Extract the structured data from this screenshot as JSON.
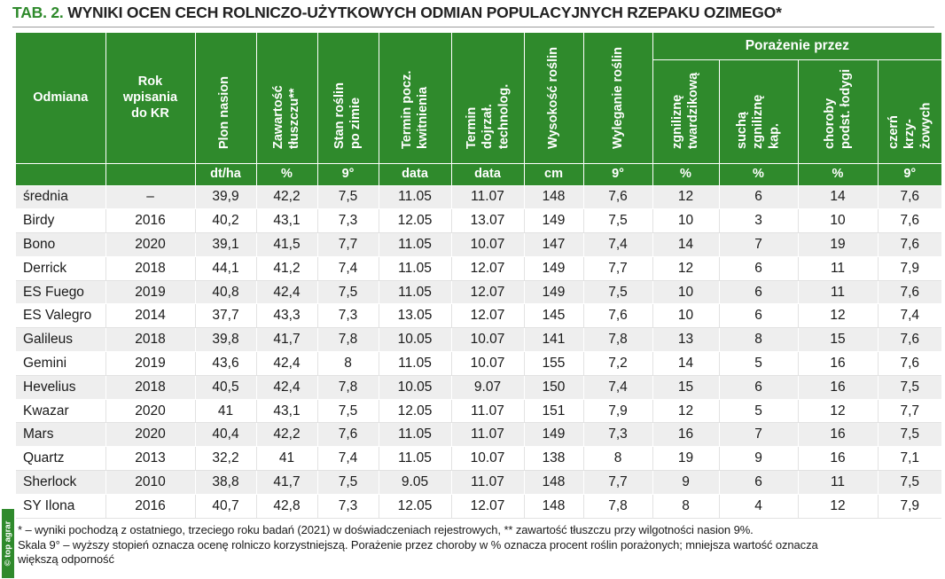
{
  "title": {
    "tab": "TAB. 2.",
    "text": "WYNIKI OCEN CECH ROLNICZO-UŻYTKOWYCH ODMIAN POPULACYJNYCH RZEPAKU OZIMEGO*"
  },
  "side_tag": "© top agrar",
  "header": {
    "odmiana": "Odmiana",
    "rok": "Rok wpisania do KR",
    "group_porazenie": "Porażenie przez",
    "columns": [
      {
        "label": "Plon nasion",
        "unit": "dt/ha"
      },
      {
        "label": "Zawartość tłuszczu**",
        "unit": "%"
      },
      {
        "label": "Stan roślin po zimie",
        "unit": "9°"
      },
      {
        "label": "Termin pocz. kwitnienia",
        "unit": "data"
      },
      {
        "label": "Termin dojrzał. technolog.",
        "unit": "data"
      },
      {
        "label": "Wysokość roślin",
        "unit": "cm"
      },
      {
        "label": "Wyleganie roślin",
        "unit": "9°"
      },
      {
        "label": "zgniliznę twardzikową",
        "unit": "%"
      },
      {
        "label": "suchą zgniliznę kap.",
        "unit": "%"
      },
      {
        "label": "choroby podst. łodygi",
        "unit": "%"
      },
      {
        "label": "czerń krzy-żowych",
        "unit": "9°"
      }
    ]
  },
  "rows": [
    {
      "name": "średnia",
      "rok": "–",
      "vals": [
        "39,9",
        "42,2",
        "7,5",
        "11.05",
        "11.07",
        "148",
        "7,6",
        "12",
        "6",
        "14",
        "7,6"
      ]
    },
    {
      "name": "Birdy",
      "rok": "2016",
      "vals": [
        "40,2",
        "43,1",
        "7,3",
        "12.05",
        "13.07",
        "149",
        "7,5",
        "10",
        "3",
        "10",
        "7,6"
      ]
    },
    {
      "name": "Bono",
      "rok": "2020",
      "vals": [
        "39,1",
        "41,5",
        "7,7",
        "11.05",
        "10.07",
        "147",
        "7,4",
        "14",
        "7",
        "19",
        "7,6"
      ]
    },
    {
      "name": "Derrick",
      "rok": "2018",
      "vals": [
        "44,1",
        "41,2",
        "7,4",
        "11.05",
        "12.07",
        "149",
        "7,7",
        "12",
        "6",
        "11",
        "7,9"
      ]
    },
    {
      "name": "ES Fuego",
      "rok": "2019",
      "vals": [
        "40,8",
        "42,4",
        "7,5",
        "11.05",
        "12.07",
        "149",
        "7,5",
        "10",
        "6",
        "11",
        "7,6"
      ]
    },
    {
      "name": "ES Valegro",
      "rok": "2014",
      "vals": [
        "37,7",
        "43,3",
        "7,3",
        "13.05",
        "12.07",
        "145",
        "7,6",
        "10",
        "6",
        "12",
        "7,4"
      ]
    },
    {
      "name": "Galileus",
      "rok": "2018",
      "vals": [
        "39,8",
        "41,7",
        "7,8",
        "10.05",
        "10.07",
        "141",
        "7,8",
        "13",
        "8",
        "15",
        "7,6"
      ]
    },
    {
      "name": "Gemini",
      "rok": "2019",
      "vals": [
        "43,6",
        "42,4",
        "8",
        "11.05",
        "10.07",
        "155",
        "7,2",
        "14",
        "5",
        "16",
        "7,6"
      ]
    },
    {
      "name": "Hevelius",
      "rok": "2018",
      "vals": [
        "40,5",
        "42,4",
        "7,8",
        "10.05",
        "9.07",
        "150",
        "7,4",
        "15",
        "6",
        "16",
        "7,5"
      ]
    },
    {
      "name": "Kwazar",
      "rok": "2020",
      "vals": [
        "41",
        "43,1",
        "7,5",
        "12.05",
        "11.07",
        "151",
        "7,9",
        "12",
        "5",
        "12",
        "7,7"
      ]
    },
    {
      "name": "Mars",
      "rok": "2020",
      "vals": [
        "40,4",
        "42,2",
        "7,6",
        "11.05",
        "11.07",
        "149",
        "7,3",
        "16",
        "7",
        "16",
        "7,5"
      ]
    },
    {
      "name": "Quartz",
      "rok": "2013",
      "vals": [
        "32,2",
        "41",
        "7,4",
        "11.05",
        "10.07",
        "138",
        "8",
        "19",
        "9",
        "16",
        "7,1"
      ]
    },
    {
      "name": "Sherlock",
      "rok": "2010",
      "vals": [
        "38,8",
        "41,7",
        "7,5",
        "9.05",
        "11.07",
        "148",
        "7,7",
        "9",
        "6",
        "11",
        "7,5"
      ]
    },
    {
      "name": "SY Ilona",
      "rok": "2016",
      "vals": [
        "40,7",
        "42,8",
        "7,3",
        "12.05",
        "12.07",
        "148",
        "7,8",
        "8",
        "4",
        "12",
        "7,9"
      ]
    }
  ],
  "notes": [
    "* – wyniki pochodzą z ostatniego, trzeciego roku badań (2021) w doświadczeniach rejestrowych, ** zawartość tłuszczu przy wilgotności nasion 9%.",
    "Skala 9° – wyższy stopień oznacza ocenę rolniczo korzystniejszą. Porażenie przez choroby w % oznacza procent roślin porażonych; mniejsza wartość oznacza",
    "większą odporność"
  ],
  "colors": {
    "brand_green": "#2f8a2c",
    "row_stripe": "#eeeeee"
  }
}
